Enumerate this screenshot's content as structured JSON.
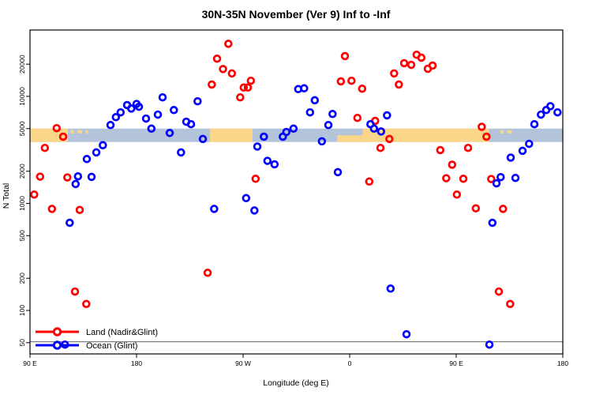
{
  "chart_data": {
    "type": "scatter",
    "title": "30N-35N November (Ver 9)   Inf to -Inf",
    "xlabel": "Longitude (deg E)",
    "ylabel": "N Total",
    "x_axis": {
      "tick_labels": [
        "90 E",
        "180",
        "90 W",
        "0",
        "90 E",
        "180"
      ],
      "tick_positions_deg": [
        0,
        90,
        180,
        270,
        360,
        450
      ],
      "range_deg": [
        0,
        450
      ],
      "note": "axis starts at 90E and wraps eastward 450 degrees"
    },
    "y_axis": {
      "scale": "log",
      "tick_values": [
        50,
        100,
        200,
        500,
        1000,
        2000,
        5000,
        10000,
        20000
      ],
      "tick_labels": [
        "50",
        "100",
        "200",
        "500",
        "1000",
        "2000",
        "5000",
        "10000",
        "20000"
      ],
      "range": [
        39,
        41000
      ],
      "grid": false
    },
    "reference_line_y": 51,
    "map_band": {
      "value_range": [
        3750,
        5000
      ],
      "ocean_color": "#b3c3da",
      "land_color": "#f9d689",
      "land_segments_deg": [
        [
          0,
          32
        ],
        [
          152,
          188
        ],
        [
          281,
          387.5
        ]
      ],
      "half_land_segments_deg": [
        [
          259.5,
          281
        ]
      ],
      "island_specks_deg": [
        [
          34,
          37
        ],
        [
          40,
          44
        ],
        [
          47,
          49
        ],
        [
          397,
          400
        ],
        [
          403,
          407
        ]
      ]
    },
    "legend": {
      "position": "bottom-left",
      "entries": [
        "Land (Nadir&Glint)",
        "Ocean (Glint)"
      ]
    },
    "series": [
      {
        "name": "Land (Nadir&Glint)",
        "color": "#ff0000",
        "points": [
          [
            22.5,
            5050
          ],
          [
            28,
            4200
          ],
          [
            12.5,
            3300
          ],
          [
            3.5,
            1210
          ],
          [
            8.5,
            1780
          ],
          [
            31.5,
            1750
          ],
          [
            18.5,
            890
          ],
          [
            42,
            870
          ],
          [
            38,
            150
          ],
          [
            47.5,
            115
          ],
          [
            150,
            225
          ],
          [
            167.5,
            31000
          ],
          [
            158,
            22500
          ],
          [
            163,
            18000
          ],
          [
            170.5,
            16400
          ],
          [
            153.5,
            12900
          ],
          [
            186.5,
            14000
          ],
          [
            184,
            12100
          ],
          [
            180.5,
            12100
          ],
          [
            177.5,
            9800
          ],
          [
            190.5,
            1700
          ],
          [
            266,
            23800
          ],
          [
            262.5,
            13800
          ],
          [
            271.5,
            14000
          ],
          [
            280.5,
            11800
          ],
          [
            276.5,
            6300
          ],
          [
            286.5,
            1600
          ],
          [
            291.5,
            5900
          ],
          [
            296,
            3300
          ],
          [
            303.5,
            4000
          ],
          [
            307.5,
            16400
          ],
          [
            311.5,
            12900
          ],
          [
            316,
            20400
          ],
          [
            322,
            19700
          ],
          [
            326.5,
            24500
          ],
          [
            330.5,
            23000
          ],
          [
            336,
            18100
          ],
          [
            340,
            19400
          ],
          [
            346.5,
            3150
          ],
          [
            351.5,
            1720
          ],
          [
            356.5,
            2300
          ],
          [
            360.5,
            1210
          ],
          [
            366,
            1700
          ],
          [
            370,
            3300
          ],
          [
            376.5,
            900
          ],
          [
            381.5,
            5200
          ],
          [
            385.5,
            4200
          ],
          [
            389.5,
            1690
          ],
          [
            396,
            150
          ],
          [
            399.5,
            890
          ],
          [
            405.5,
            115
          ]
        ]
      },
      {
        "name": "Ocean (Glint)",
        "color": "#0000ff",
        "points": [
          [
            29.5,
            48
          ],
          [
            33.5,
            660
          ],
          [
            38.5,
            1520
          ],
          [
            40.5,
            1790
          ],
          [
            48,
            2600
          ],
          [
            52,
            1770
          ],
          [
            56,
            3000
          ],
          [
            61.5,
            3500
          ],
          [
            68,
            5400
          ],
          [
            72.5,
            6400
          ],
          [
            76.5,
            7100
          ],
          [
            82,
            8300
          ],
          [
            85.5,
            7700
          ],
          [
            90,
            8500
          ],
          [
            92,
            8000
          ],
          [
            98,
            6200
          ],
          [
            102.5,
            5000
          ],
          [
            108,
            6750
          ],
          [
            112,
            9800
          ],
          [
            118,
            4550
          ],
          [
            121.5,
            7450
          ],
          [
            127.5,
            3000
          ],
          [
            132,
            5800
          ],
          [
            136,
            5500
          ],
          [
            141.5,
            9000
          ],
          [
            146,
            4000
          ],
          [
            155.5,
            890
          ],
          [
            182.5,
            1120
          ],
          [
            189.5,
            860
          ],
          [
            192,
            3400
          ],
          [
            197.5,
            4200
          ],
          [
            200.5,
            2500
          ],
          [
            206.5,
            2320
          ],
          [
            213.5,
            4200
          ],
          [
            216.5,
            4650
          ],
          [
            222.5,
            5000
          ],
          [
            226.5,
            11700
          ],
          [
            231.5,
            11900
          ],
          [
            236.5,
            7100
          ],
          [
            240.5,
            9200
          ],
          [
            246.5,
            3800
          ],
          [
            252,
            5400
          ],
          [
            255.5,
            6850
          ],
          [
            260,
            1960
          ],
          [
            287.5,
            5500
          ],
          [
            290.5,
            5000
          ],
          [
            296.5,
            4700
          ],
          [
            301.5,
            6650
          ],
          [
            304.5,
            160
          ],
          [
            318,
            60
          ],
          [
            388,
            48
          ],
          [
            390.5,
            660
          ],
          [
            394,
            1540
          ],
          [
            397.5,
            1760
          ],
          [
            406,
            2680
          ],
          [
            410,
            1730
          ],
          [
            416,
            3100
          ],
          [
            421.5,
            3600
          ],
          [
            426,
            5500
          ],
          [
            431.5,
            6750
          ],
          [
            436,
            7450
          ],
          [
            439.5,
            8100
          ],
          [
            445.5,
            7100
          ]
        ]
      }
    ]
  }
}
